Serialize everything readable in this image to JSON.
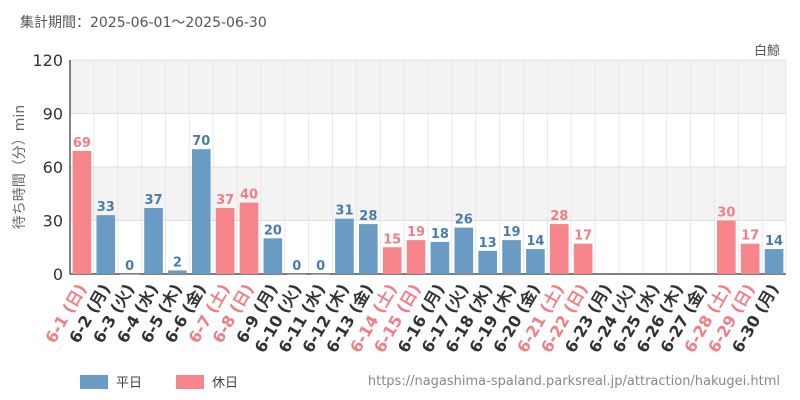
{
  "header": {
    "period": "集計期間：2025-06-01～2025-06-30"
  },
  "attraction": "白鯨",
  "source_url": "https://nagashima-spaland.parksreal.jp/attraction/hakugei.html",
  "legend": [
    {
      "label": "平日",
      "color": "#6a9bc4"
    },
    {
      "label": "休日",
      "color": "#f7868c"
    }
  ],
  "colors": {
    "weekday": "#6a9bc4",
    "holiday": "#f7868c",
    "weekday_text": "#4a7cab",
    "holiday_text": "#f07f85",
    "axis_text": "#333333"
  },
  "chart_data": {
    "type": "bar",
    "ylabel": "待ち時間（分）min",
    "ylim": [
      0,
      120
    ],
    "yticks": [
      0,
      30,
      60,
      90,
      120
    ],
    "grid": true,
    "categories": [
      "6-1 (日)",
      "6-2 (月)",
      "6-3 (火)",
      "6-4 (水)",
      "6-5 (木)",
      "6-6 (金)",
      "6-7 (土)",
      "6-8 (日)",
      "6-9 (月)",
      "6-10 (火)",
      "6-11 (水)",
      "6-12 (木)",
      "6-13 (金)",
      "6-14 (土)",
      "6-15 (日)",
      "6-16 (月)",
      "6-17 (火)",
      "6-18 (水)",
      "6-19 (木)",
      "6-20 (金)",
      "6-21 (土)",
      "6-22 (日)",
      "6-23 (月)",
      "6-24 (火)",
      "6-25 (水)",
      "6-26 (木)",
      "6-27 (金)",
      "6-28 (土)",
      "6-29 (日)",
      "6-30 (月)"
    ],
    "values": [
      69,
      33,
      0,
      37,
      2,
      70,
      37,
      40,
      20,
      0,
      0,
      31,
      28,
      15,
      19,
      18,
      26,
      13,
      19,
      14,
      28,
      17,
      null,
      null,
      null,
      null,
      null,
      30,
      17,
      14
    ],
    "is_holiday": [
      true,
      false,
      false,
      false,
      false,
      false,
      true,
      true,
      false,
      false,
      false,
      false,
      false,
      true,
      true,
      false,
      false,
      false,
      false,
      false,
      true,
      true,
      false,
      false,
      false,
      false,
      false,
      true,
      true,
      false
    ]
  }
}
